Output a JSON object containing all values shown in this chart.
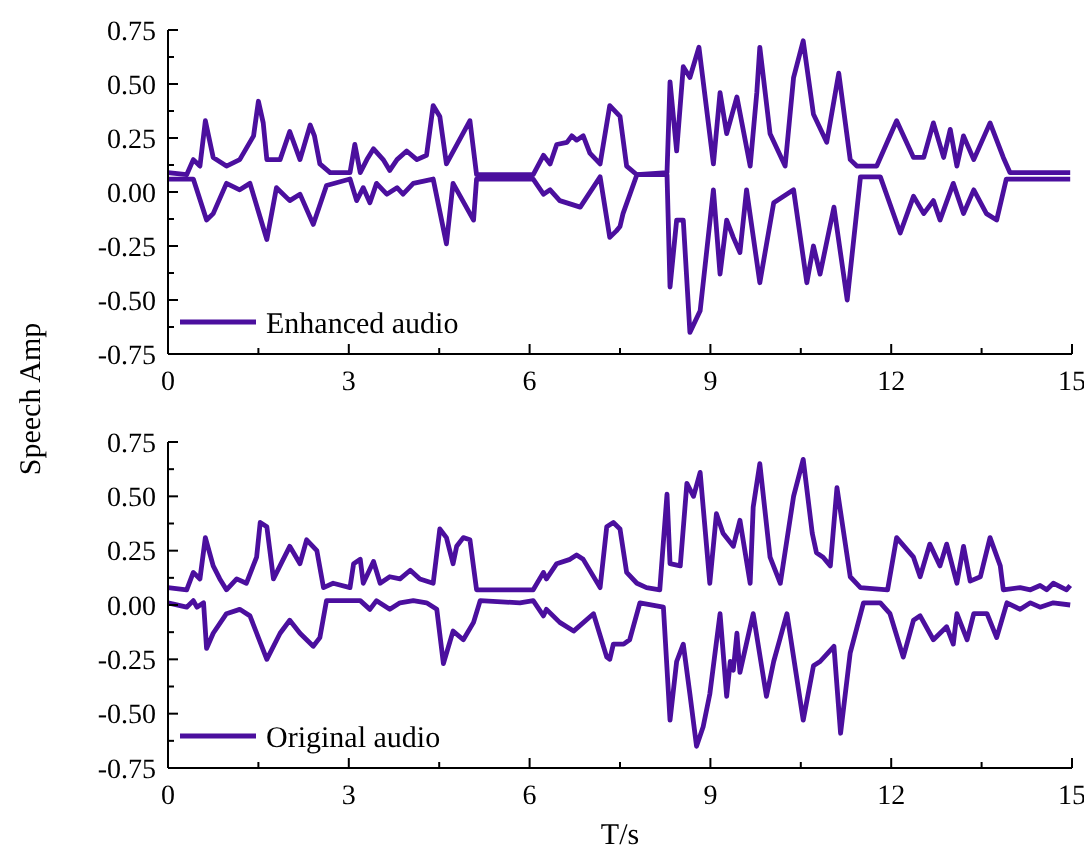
{
  "chart_data": [
    {
      "type": "line",
      "ylabel": "Speech Amp",
      "legend": "bottom left",
      "line_style": "solid",
      "marker": "none",
      "xlim": [
        0,
        15
      ],
      "ylim": [
        -0.75,
        0.75
      ],
      "xticks": [
        0,
        {
          "value": 1.5,
          "label": null
        },
        3,
        {
          "value": 4.5,
          "label": null
        },
        6,
        {
          "value": 7.5,
          "label": null
        },
        9,
        {
          "value": 10.5,
          "label": null
        },
        12,
        {
          "value": 13.5,
          "label": null
        },
        15
      ],
      "yticks": [
        {
          "value": 0.75,
          "label": "0.75"
        },
        {
          "value": 0.625,
          "label": null
        },
        {
          "value": 0.5,
          "label": "0.50"
        },
        {
          "value": 0.375,
          "label": null
        },
        {
          "value": 0.25,
          "label": "0.25"
        },
        {
          "value": 0.125,
          "label": null
        },
        {
          "value": 0,
          "label": "0.00"
        },
        {
          "value": -0.125,
          "label": null
        },
        {
          "value": -0.25,
          "label": "-0.25"
        },
        {
          "value": -0.375,
          "label": null
        },
        {
          "value": -0.5,
          "label": "-0.50"
        },
        {
          "value": -0.625,
          "label": null
        },
        {
          "value": -0.75,
          "label": "-0.75"
        }
      ],
      "series": [
        {
          "name": "Enhanced audio",
          "color": "#4b0f9e",
          "x": [
            0,
            0.31,
            0.42,
            0.53,
            0.62,
            0.75,
            0.97,
            1.19,
            1.42,
            1.5,
            1.58,
            1.64,
            1.86,
            2.02,
            2.19,
            2.36,
            2.43,
            2.52,
            2.69,
            3.02,
            3.1,
            3.19,
            3.3,
            3.41,
            3.57,
            3.68,
            3.8,
            3.96,
            4.13,
            4.29,
            4.4,
            4.51,
            4.62,
            5.01,
            5.12,
            6.06,
            6.23,
            6.34,
            6.45,
            6.62,
            6.7,
            6.78,
            6.89,
            7.0,
            7.17,
            7.33,
            7.5,
            7.61,
            7.78,
            8.28,
            8.33,
            8.44,
            8.55,
            8.66,
            8.81,
            9.05,
            9.16,
            9.27,
            9.44,
            9.66,
            9.77,
            9.82,
            9.99,
            10.24,
            10.38,
            10.54,
            10.71,
            10.93,
            11.13,
            11.32,
            11.43,
            11.76,
            12.09,
            12.37,
            12.54,
            12.7,
            12.87,
            12.98,
            13.09,
            13.2,
            13.37,
            13.64,
            13.86,
            13.97,
            14.97
          ],
          "values": [
            0.09,
            0.08,
            0.15,
            0.12,
            0.33,
            0.16,
            0.12,
            0.15,
            0.26,
            0.42,
            0.32,
            0.15,
            0.15,
            0.28,
            0.15,
            0.31,
            0.26,
            0.13,
            0.09,
            0.09,
            0.22,
            0.09,
            0.15,
            0.2,
            0.15,
            0.1,
            0.15,
            0.19,
            0.15,
            0.17,
            0.4,
            0.35,
            0.13,
            0.33,
            0.08,
            0.08,
            0.17,
            0.13,
            0.22,
            0.23,
            0.26,
            0.24,
            0.26,
            0.18,
            0.13,
            0.4,
            0.35,
            0.12,
            0.08,
            0.09,
            0.51,
            0.19,
            0.58,
            0.53,
            0.67,
            0.13,
            0.46,
            0.27,
            0.44,
            0.12,
            0.46,
            0.67,
            0.27,
            0.12,
            0.53,
            0.7,
            0.36,
            0.23,
            0.55,
            0.15,
            0.12,
            0.12,
            0.33,
            0.16,
            0.16,
            0.32,
            0.16,
            0.29,
            0.12,
            0.26,
            0.15,
            0.32,
            0.16,
            0.09,
            0.09
          ]
        },
        {
          "color": "#4b0f9e",
          "x": [
            0,
            0.31,
            0.42,
            0.64,
            0.75,
            0.97,
            1.19,
            1.36,
            1.64,
            1.8,
            2.02,
            2.19,
            2.41,
            2.63,
            3.02,
            3.13,
            3.24,
            3.35,
            3.46,
            3.63,
            3.8,
            3.9,
            4.07,
            4.4,
            4.62,
            4.73,
            5.07,
            5.12,
            6.06,
            6.23,
            6.34,
            6.5,
            6.84,
            7.17,
            7.33,
            7.44,
            7.5,
            7.55,
            7.78,
            8.28,
            8.33,
            8.44,
            8.55,
            8.66,
            8.83,
            9.05,
            9.16,
            9.27,
            9.38,
            9.49,
            9.6,
            9.82,
            10.05,
            10.38,
            10.6,
            10.71,
            10.82,
            11.05,
            11.27,
            11.49,
            11.82,
            12.15,
            12.37,
            12.54,
            12.7,
            12.81,
            13.03,
            13.2,
            13.37,
            13.58,
            13.75,
            13.91,
            14.97
          ],
          "values": [
            0.06,
            0.06,
            0.06,
            -0.13,
            -0.1,
            0.04,
            0.01,
            0.04,
            -0.22,
            0.02,
            -0.04,
            -0.01,
            -0.15,
            0.03,
            0.06,
            -0.04,
            0.02,
            -0.05,
            0.04,
            -0.01,
            0.02,
            -0.01,
            0.04,
            0.06,
            -0.24,
            0.04,
            -0.13,
            0.06,
            0.06,
            -0.01,
            0.01,
            -0.04,
            -0.07,
            0.07,
            -0.21,
            -0.18,
            -0.16,
            -0.1,
            0.08,
            0.08,
            -0.44,
            -0.13,
            -0.13,
            -0.65,
            -0.55,
            0.01,
            -0.38,
            -0.13,
            -0.21,
            -0.28,
            0.01,
            -0.42,
            -0.05,
            0.01,
            -0.42,
            -0.25,
            -0.38,
            -0.07,
            -0.5,
            0.07,
            0.07,
            -0.19,
            -0.02,
            -0.1,
            -0.04,
            -0.13,
            0.04,
            -0.1,
            0.01,
            -0.1,
            -0.13,
            0.06,
            0.06
          ]
        }
      ]
    },
    {
      "type": "line",
      "xlabel": "T/s",
      "legend": "bottom left",
      "line_style": "solid",
      "marker": "none",
      "xlim": [
        0,
        15
      ],
      "ylim": [
        -0.75,
        0.75
      ],
      "xticks": [
        0,
        {
          "value": 1.5,
          "label": null
        },
        3,
        {
          "value": 4.5,
          "label": null
        },
        6,
        {
          "value": 7.5,
          "label": null
        },
        9,
        {
          "value": 10.5,
          "label": null
        },
        12,
        {
          "value": 13.5,
          "label": null
        },
        15
      ],
      "yticks": [
        {
          "value": 0.75,
          "label": "0.75"
        },
        {
          "value": 0.625,
          "label": null
        },
        {
          "value": 0.5,
          "label": "0.50"
        },
        {
          "value": 0.375,
          "label": null
        },
        {
          "value": 0.25,
          "label": "0.25"
        },
        {
          "value": 0.125,
          "label": null
        },
        {
          "value": 0,
          "label": "0.00"
        },
        {
          "value": -0.125,
          "label": null
        },
        {
          "value": -0.25,
          "label": "-0.25"
        },
        {
          "value": -0.375,
          "label": null
        },
        {
          "value": -0.5,
          "label": "-0.50"
        },
        {
          "value": -0.625,
          "label": null
        },
        {
          "value": -0.75,
          "label": "-0.75"
        }
      ],
      "series": [
        {
          "name": "Original audio",
          "color": "#4b0f9e",
          "x": [
            0,
            0.31,
            0.42,
            0.53,
            0.62,
            0.75,
            0.86,
            0.97,
            1.14,
            1.3,
            1.47,
            1.53,
            1.64,
            1.75,
            2.02,
            2.19,
            2.3,
            2.47,
            2.58,
            2.74,
            3.02,
            3.08,
            3.19,
            3.24,
            3.41,
            3.52,
            3.68,
            3.85,
            4.02,
            4.18,
            4.4,
            4.51,
            4.62,
            4.73,
            4.79,
            4.9,
            5.01,
            5.12,
            6.06,
            6.23,
            6.28,
            6.45,
            6.67,
            6.78,
            6.89,
            7.17,
            7.28,
            7.39,
            7.5,
            7.61,
            7.78,
            7.94,
            8.16,
            8.28,
            8.33,
            8.5,
            8.61,
            8.72,
            8.83,
            8.99,
            9.1,
            9.21,
            9.38,
            9.49,
            9.66,
            9.71,
            9.82,
            9.99,
            10.16,
            10.38,
            10.54,
            10.69,
            10.76,
            10.87,
            10.99,
            11.1,
            11.32,
            11.49,
            11.94,
            12.09,
            12.37,
            12.48,
            12.64,
            12.81,
            12.92,
            13.09,
            13.2,
            13.31,
            13.48,
            13.64,
            13.81,
            13.86,
            14.14,
            14.31,
            14.47,
            14.58,
            14.69,
            14.91,
            14.97
          ],
          "values": [
            0.08,
            0.07,
            0.15,
            0.12,
            0.31,
            0.18,
            0.12,
            0.07,
            0.12,
            0.1,
            0.22,
            0.38,
            0.36,
            0.12,
            0.27,
            0.19,
            0.3,
            0.25,
            0.08,
            0.1,
            0.08,
            0.19,
            0.21,
            0.1,
            0.2,
            0.1,
            0.13,
            0.12,
            0.16,
            0.12,
            0.1,
            0.35,
            0.31,
            0.19,
            0.27,
            0.31,
            0.3,
            0.07,
            0.07,
            0.15,
            0.12,
            0.19,
            0.21,
            0.23,
            0.21,
            0.08,
            0.36,
            0.38,
            0.35,
            0.15,
            0.1,
            0.08,
            0.07,
            0.51,
            0.19,
            0.18,
            0.56,
            0.5,
            0.61,
            0.1,
            0.42,
            0.33,
            0.27,
            0.39,
            0.1,
            0.45,
            0.65,
            0.22,
            0.1,
            0.5,
            0.67,
            0.33,
            0.24,
            0.22,
            0.18,
            0.54,
            0.13,
            0.08,
            0.07,
            0.31,
            0.22,
            0.13,
            0.28,
            0.18,
            0.28,
            0.1,
            0.27,
            0.11,
            0.13,
            0.31,
            0.18,
            0.07,
            0.08,
            0.07,
            0.09,
            0.07,
            0.1,
            0.07,
            0.09
          ]
        },
        {
          "color": "#4b0f9e",
          "x": [
            0,
            0.31,
            0.42,
            0.48,
            0.59,
            0.64,
            0.75,
            0.97,
            1.19,
            1.36,
            1.64,
            1.86,
            2.02,
            2.19,
            2.41,
            2.52,
            2.63,
            3.19,
            3.35,
            3.46,
            3.68,
            3.85,
            4.07,
            4.29,
            4.46,
            4.57,
            4.73,
            4.9,
            5.07,
            5.18,
            5.84,
            6.06,
            6.23,
            6.28,
            6.5,
            6.73,
            7.06,
            7.28,
            7.33,
            7.39,
            7.56,
            7.66,
            7.83,
            8.22,
            8.33,
            8.44,
            8.55,
            8.66,
            8.77,
            8.88,
            8.99,
            9.16,
            9.27,
            9.33,
            9.38,
            9.44,
            9.49,
            9.71,
            9.93,
            10.05,
            10.16,
            10.27,
            10.54,
            10.71,
            10.82,
            11.05,
            11.16,
            11.32,
            11.54,
            11.82,
            11.98,
            12.2,
            12.37,
            12.48,
            12.7,
            12.92,
            13.03,
            13.09,
            13.26,
            13.37,
            13.59,
            13.75,
            13.92,
            14.14,
            14.31,
            14.47,
            14.69,
            14.97
          ],
          "values": [
            0.01,
            -0.01,
            0.02,
            -0.01,
            0.01,
            -0.2,
            -0.13,
            -0.04,
            -0.02,
            -0.05,
            -0.25,
            -0.13,
            -0.07,
            -0.13,
            -0.19,
            -0.15,
            0.02,
            0.02,
            -0.02,
            0.02,
            -0.02,
            0.01,
            0.02,
            0.01,
            -0.02,
            -0.27,
            -0.12,
            -0.16,
            -0.08,
            0.02,
            0.01,
            0.02,
            -0.05,
            -0.02,
            -0.08,
            -0.12,
            -0.04,
            -0.24,
            -0.25,
            -0.18,
            -0.18,
            -0.16,
            0.01,
            -0.01,
            -0.53,
            -0.26,
            -0.18,
            -0.41,
            -0.65,
            -0.56,
            -0.41,
            -0.04,
            -0.42,
            -0.26,
            -0.3,
            -0.13,
            -0.31,
            -0.04,
            -0.42,
            -0.26,
            -0.15,
            -0.04,
            -0.53,
            -0.28,
            -0.26,
            -0.19,
            -0.59,
            -0.22,
            0.01,
            0.01,
            -0.04,
            -0.24,
            -0.07,
            -0.05,
            -0.16,
            -0.1,
            -0.18,
            -0.04,
            -0.16,
            -0.04,
            -0.04,
            -0.15,
            0.01,
            -0.02,
            0.01,
            -0.01,
            0.01,
            0
          ]
        }
      ]
    }
  ]
}
